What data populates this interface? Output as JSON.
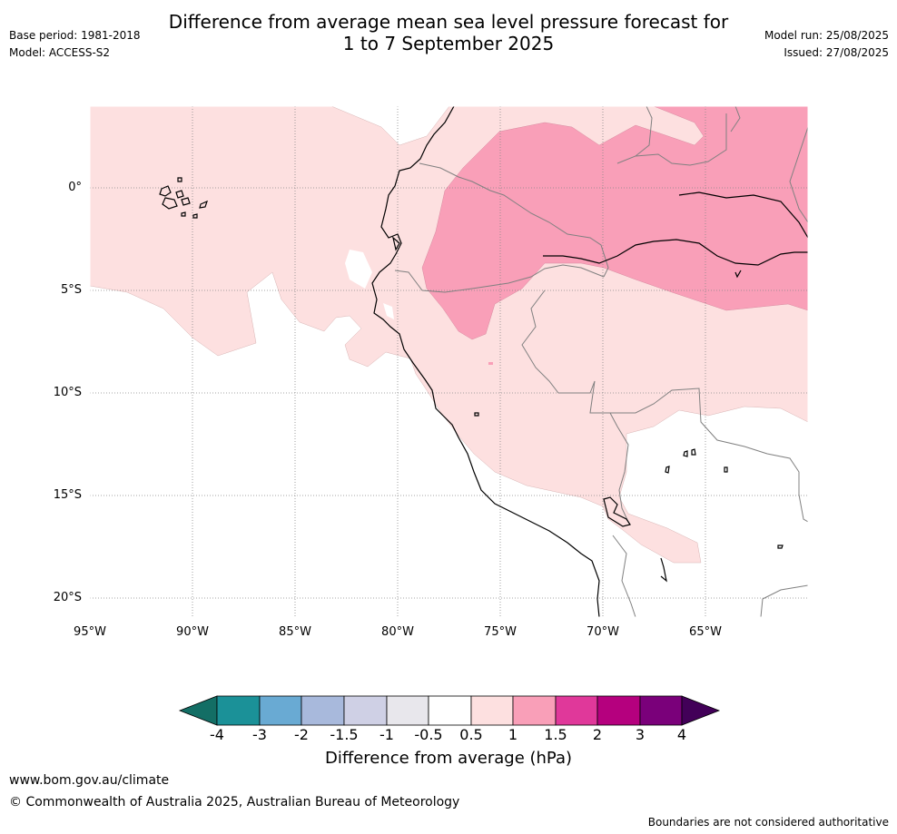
{
  "title_line1": "Difference from average mean sea level pressure forecast for",
  "title_line2": "1 to 7 September 2025",
  "base_period": "Base period: 1981-2018",
  "model": "Model: ACCESS-S2",
  "model_run": "Model run: 25/08/2025",
  "issued": "Issued: 27/08/2025",
  "lat_labels": [
    "0°",
    "5°S",
    "10°S",
    "15°S",
    "20°S"
  ],
  "lon_labels": [
    "95°W",
    "90°W",
    "85°W",
    "80°W",
    "75°W",
    "70°W",
    "65°W"
  ],
  "colorbar": {
    "title": "Difference from average (hPa)",
    "ticks": [
      "-4",
      "-3",
      "-2",
      "-1.5",
      "-1",
      "-0.5",
      "0.5",
      "1",
      "1.5",
      "2",
      "3",
      "4"
    ],
    "colors": [
      "#136e65",
      "#1b9198",
      "#69aad3",
      "#a8b9dc",
      "#cfd0e5",
      "#e8e7ec",
      "#ffffff",
      "#fde0e0",
      "#f99fb8",
      "#e0389a",
      "#b5007e",
      "#7a007a",
      "#420058"
    ]
  },
  "website": "www.bom.gov.au/climate",
  "copyright": "© Commonwealth of Australia 2025, Australian Bureau of Meteorology",
  "disclaimer": "Boundaries are not considered authoritative"
}
